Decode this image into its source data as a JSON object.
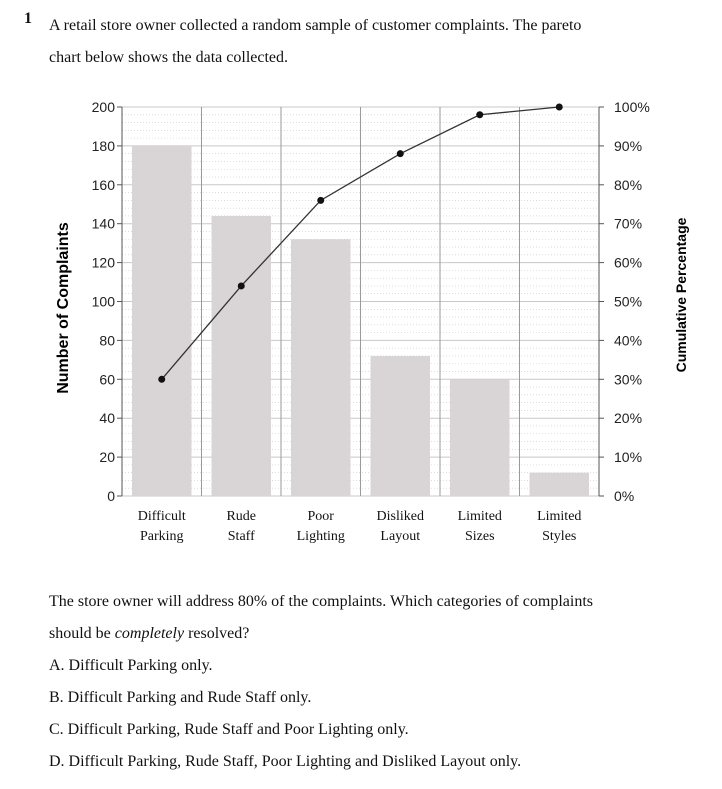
{
  "question": {
    "number": "1",
    "intro_line1": "A retail store owner collected a random sample of customer complaints. The pareto",
    "intro_line2": "chart below shows the data collected.",
    "prompt_line1": "The store owner will address 80% of the complaints. Which categories of complaints",
    "prompt_line2_before": "should be ",
    "prompt_line2_emph": "completely",
    "prompt_line2_after": " resolved?",
    "options": [
      "A.  Difficult Parking only.",
      "B.  Difficult Parking and Rude Staff only.",
      "C.  Difficult Parking, Rude Staff and Poor Lighting only.",
      "D.  Difficult Parking, Rude Staff, Poor Lighting and Disliked Layout only."
    ]
  },
  "chart_data": {
    "type": "bar",
    "categories": [
      [
        "Difficult",
        "Parking"
      ],
      [
        "Rude",
        "Staff"
      ],
      [
        "Poor",
        "Lighting"
      ],
      [
        "Disliked",
        "Layout"
      ],
      [
        "Limited",
        "Sizes"
      ],
      [
        "Limited",
        "Styles"
      ]
    ],
    "values": [
      180,
      144,
      132,
      72,
      60,
      12
    ],
    "cumulative_percent": [
      30,
      54,
      76,
      88,
      98,
      100
    ],
    "ylabel": "Number of Complaints",
    "y2label": "Cumulative Percentage",
    "ylim": [
      0,
      200
    ],
    "y_ticks": [
      "0",
      "20",
      "40",
      "60",
      "80",
      "100",
      "120",
      "140",
      "160",
      "180",
      "200"
    ],
    "y2lim": [
      0,
      100
    ],
    "y2_ticks": [
      "0%",
      "10%",
      "20%",
      "30%",
      "40%",
      "50%",
      "60%",
      "70%",
      "80%",
      "90%",
      "100%"
    ],
    "grid": true,
    "colors": {
      "bar": "#d9d4d6",
      "line": "#333333",
      "grid": "#c8c8c8"
    }
  }
}
